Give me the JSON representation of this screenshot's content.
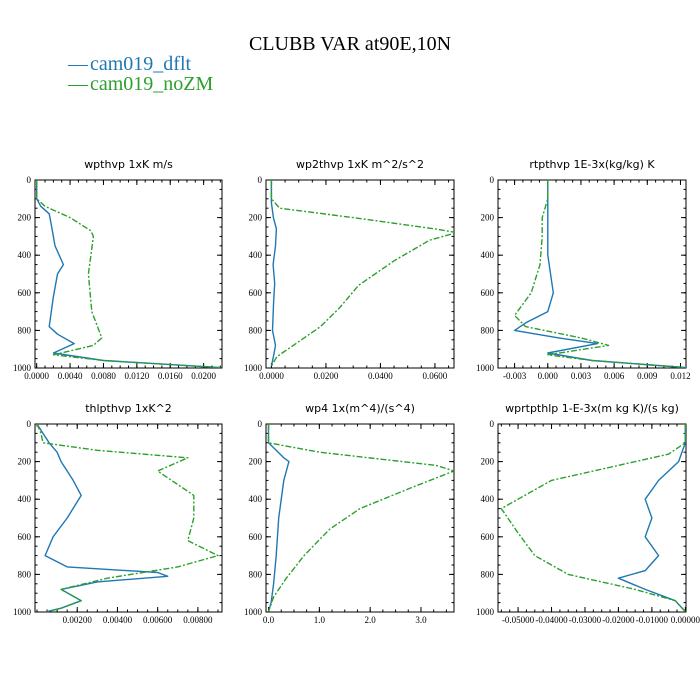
{
  "figure": {
    "title": "CLUBB VAR at90E,10N"
  },
  "colors": {
    "cam019_dflt": "#1f77b4",
    "cam019_noZM": "#2ca02c"
  },
  "legend": {
    "placement": "top-left",
    "items": [
      {
        "symbol": "—",
        "label": "cam019_dflt",
        "color": "#1f77b4"
      },
      {
        "symbol": "—",
        "label": "cam019_noZM",
        "color": "#2ca02c"
      }
    ]
  },
  "chart_data": [
    {
      "type": "line",
      "title": "wpthvp   1xK m/s",
      "xlim": [
        -0.0002,
        0.0222
      ],
      "ylim": [
        1000,
        0
      ],
      "xticks": [
        0.0,
        0.004,
        0.008,
        0.012,
        0.016,
        0.02
      ],
      "xtick_labels": [
        "0.0000",
        "0.0040",
        "0.0080",
        "0.0120",
        "0.0160",
        "0.0200"
      ],
      "yticks": [
        0,
        200,
        400,
        600,
        800,
        1000
      ],
      "ytick_labels": [
        "0",
        "200",
        "400",
        "600",
        "800",
        "1000"
      ],
      "series": [
        {
          "name": "cam019_dflt",
          "dash": "",
          "points": [
            [
              0.0,
              0
            ],
            [
              0.0,
              100
            ],
            [
              0.0005,
              140
            ],
            [
              0.0015,
              180
            ],
            [
              0.0018,
              250
            ],
            [
              0.0022,
              350
            ],
            [
              0.0032,
              450
            ],
            [
              0.0025,
              500
            ],
            [
              0.002,
              620
            ],
            [
              0.0015,
              780
            ],
            [
              0.0025,
              820
            ],
            [
              0.0045,
              870
            ],
            [
              0.002,
              920
            ],
            [
              0.008,
              960
            ],
            [
              0.022,
              998
            ]
          ]
        },
        {
          "name": "cam019_noZM",
          "dash": "6,2,2,2",
          "points": [
            [
              0.0,
              0
            ],
            [
              0.0,
              100
            ],
            [
              0.001,
              140
            ],
            [
              0.004,
              200
            ],
            [
              0.0065,
              270
            ],
            [
              0.0068,
              300
            ],
            [
              0.0062,
              500
            ],
            [
              0.0066,
              700
            ],
            [
              0.0078,
              840
            ],
            [
              0.0068,
              880
            ],
            [
              0.002,
              930
            ],
            [
              0.008,
              960
            ],
            [
              0.022,
              998
            ]
          ]
        }
      ]
    },
    {
      "type": "line",
      "title": "wp2thvp   1xK m^2/s^2",
      "xlim": [
        -0.002,
        0.067
      ],
      "ylim": [
        1000,
        0
      ],
      "xticks": [
        0.0,
        0.02,
        0.04,
        0.06
      ],
      "xtick_labels": [
        "0.0000",
        "0.0200",
        "0.0400",
        "0.0600"
      ],
      "yticks": [
        0,
        200,
        400,
        600,
        800,
        1000
      ],
      "ytick_labels": [
        "0",
        "200",
        "400",
        "600",
        "800",
        "1000"
      ],
      "series": [
        {
          "name": "cam019_dflt",
          "dash": "",
          "points": [
            [
              0.0,
              0
            ],
            [
              0.0,
              120
            ],
            [
              0.0007,
              200
            ],
            [
              0.0018,
              260
            ],
            [
              0.0015,
              350
            ],
            [
              0.0006,
              450
            ],
            [
              0.0012,
              550
            ],
            [
              0.0008,
              650
            ],
            [
              0.0004,
              800
            ],
            [
              0.0015,
              880
            ],
            [
              0.0007,
              940
            ],
            [
              0.0,
              990
            ]
          ]
        },
        {
          "name": "cam019_noZM",
          "dash": "6,2,2,2",
          "points": [
            [
              0.0,
              0
            ],
            [
              0.0,
              100
            ],
            [
              0.003,
              150
            ],
            [
              0.03,
              200
            ],
            [
              0.06,
              260
            ],
            [
              0.068,
              280
            ],
            [
              0.058,
              320
            ],
            [
              0.045,
              430
            ],
            [
              0.032,
              560
            ],
            [
              0.025,
              680
            ],
            [
              0.018,
              780
            ],
            [
              0.01,
              860
            ],
            [
              0.002,
              940
            ],
            [
              0.0,
              990
            ]
          ]
        }
      ]
    },
    {
      "type": "line",
      "title": "rtpthvp   1E-3x(kg/kg) K",
      "xlim": [
        -0.0045,
        0.0125
      ],
      "ylim": [
        1000,
        0
      ],
      "xticks": [
        -0.003,
        0.0,
        0.003,
        0.006,
        0.009,
        0.012
      ],
      "xtick_labels": [
        "-0.003",
        "0.000",
        "0.003",
        "0.006",
        "0.009",
        "0.012"
      ],
      "yticks": [
        0,
        200,
        400,
        600,
        800,
        1000
      ],
      "ytick_labels": [
        "0",
        "200",
        "400",
        "600",
        "800",
        "1000"
      ],
      "series": [
        {
          "name": "cam019_dflt",
          "dash": "",
          "points": [
            [
              0.0,
              0
            ],
            [
              0.0,
              200
            ],
            [
              0.0,
              400
            ],
            [
              0.0005,
              600
            ],
            [
              0.0,
              700
            ],
            [
              -0.002,
              760
            ],
            [
              -0.003,
              800
            ],
            [
              0.001,
              840
            ],
            [
              0.0045,
              870
            ],
            [
              0.0,
              920
            ],
            [
              0.004,
              960
            ],
            [
              0.0125,
              998
            ]
          ]
        },
        {
          "name": "cam019_noZM",
          "dash": "6,2,2,2",
          "points": [
            [
              0.0,
              0
            ],
            [
              0.0,
              100
            ],
            [
              -0.0005,
              200
            ],
            [
              -0.0005,
              300
            ],
            [
              -0.0007,
              450
            ],
            [
              -0.0015,
              600
            ],
            [
              -0.003,
              720
            ],
            [
              -0.002,
              780
            ],
            [
              0.003,
              840
            ],
            [
              0.0055,
              880
            ],
            [
              0.0,
              930
            ],
            [
              0.004,
              960
            ],
            [
              0.0125,
              998
            ]
          ]
        }
      ]
    },
    {
      "type": "line",
      "title": "thlpthvp   1xK^2",
      "xlim": [
        -0.0001,
        0.0092
      ],
      "ylim": [
        1000,
        0
      ],
      "xticks": [
        0.002,
        0.004,
        0.006,
        0.008
      ],
      "xtick_labels": [
        "0.00200",
        "0.00400",
        "0.00600",
        "0.00800"
      ],
      "yticks": [
        0,
        200,
        400,
        600,
        800,
        1000
      ],
      "ytick_labels": [
        "0",
        "200",
        "400",
        "600",
        "800",
        "1000"
      ],
      "series": [
        {
          "name": "cam019_dflt",
          "dash": "",
          "points": [
            [
              0.0,
              0
            ],
            [
              0.0003,
              50
            ],
            [
              0.0006,
              100
            ],
            [
              0.001,
              150
            ],
            [
              0.0012,
              200
            ],
            [
              0.0018,
              300
            ],
            [
              0.0022,
              380
            ],
            [
              0.0015,
              500
            ],
            [
              0.0008,
              600
            ],
            [
              0.0004,
              700
            ],
            [
              0.0015,
              760
            ],
            [
              0.006,
              790
            ],
            [
              0.0065,
              810
            ],
            [
              0.003,
              840
            ],
            [
              0.0012,
              880
            ],
            [
              0.0022,
              940
            ],
            [
              0.0012,
              980
            ],
            [
              0.0005,
              998
            ]
          ]
        },
        {
          "name": "cam019_noZM",
          "dash": "6,2,2,2",
          "points": [
            [
              0.0,
              0
            ],
            [
              0.0002,
              50
            ],
            [
              0.0003,
              100
            ],
            [
              0.003,
              140
            ],
            [
              0.0075,
              180
            ],
            [
              0.006,
              250
            ],
            [
              0.0078,
              380
            ],
            [
              0.0078,
              500
            ],
            [
              0.0075,
              620
            ],
            [
              0.009,
              700
            ],
            [
              0.007,
              760
            ],
            [
              0.0035,
              820
            ],
            [
              0.0012,
              880
            ],
            [
              0.0022,
              940
            ],
            [
              0.0012,
              980
            ],
            [
              0.0005,
              998
            ]
          ]
        }
      ]
    },
    {
      "type": "line",
      "title": "wp4   1x(m^4)/(s^4)",
      "xlim": [
        -0.05,
        3.65
      ],
      "ylim": [
        1000,
        0
      ],
      "xticks": [
        0.0,
        1.0,
        2.0,
        3.0
      ],
      "xtick_labels": [
        "0.0",
        "1.0",
        "2.0",
        "3.0"
      ],
      "yticks": [
        0,
        200,
        400,
        600,
        800,
        1000
      ],
      "ytick_labels": [
        "0",
        "200",
        "400",
        "600",
        "800",
        "1000"
      ],
      "series": [
        {
          "name": "cam019_dflt",
          "dash": "",
          "points": [
            [
              0.0,
              0
            ],
            [
              0.0,
              100
            ],
            [
              0.3,
              180
            ],
            [
              0.4,
              200
            ],
            [
              0.3,
              300
            ],
            [
              0.2,
              500
            ],
            [
              0.15,
              700
            ],
            [
              0.1,
              850
            ],
            [
              0.05,
              950
            ],
            [
              0.0,
              998
            ]
          ]
        },
        {
          "name": "cam019_noZM",
          "dash": "6,2,2,2",
          "points": [
            [
              0.0,
              0
            ],
            [
              0.0,
              100
            ],
            [
              1.0,
              150
            ],
            [
              3.3,
              220
            ],
            [
              3.65,
              250
            ],
            [
              2.8,
              340
            ],
            [
              1.8,
              450
            ],
            [
              1.2,
              560
            ],
            [
              0.7,
              700
            ],
            [
              0.35,
              820
            ],
            [
              0.1,
              920
            ],
            [
              0.0,
              998
            ]
          ]
        }
      ]
    },
    {
      "type": "line",
      "title": "wprtpthlp   1-E-3x(m kg K)/(s kg)",
      "xlim": [
        -0.056,
        0.0002
      ],
      "ylim": [
        1000,
        0
      ],
      "xticks": [
        -0.05,
        -0.04,
        -0.03,
        -0.02,
        -0.01,
        0.0
      ],
      "xtick_labels": [
        "-0.05000",
        "-0.04000",
        "-0.03000",
        "-0.02000",
        "-0.01000",
        "0.00000"
      ],
      "yticks": [
        0,
        200,
        400,
        600,
        800,
        1000
      ],
      "ytick_labels": [
        "0",
        "200",
        "400",
        "600",
        "800",
        "1000"
      ],
      "series": [
        {
          "name": "cam019_dflt",
          "dash": "",
          "points": [
            [
              0.0,
              0
            ],
            [
              0.0,
              100
            ],
            [
              -0.002,
              200
            ],
            [
              -0.008,
              300
            ],
            [
              -0.012,
              400
            ],
            [
              -0.01,
              500
            ],
            [
              -0.012,
              600
            ],
            [
              -0.008,
              700
            ],
            [
              -0.012,
              780
            ],
            [
              -0.02,
              820
            ],
            [
              -0.012,
              880
            ],
            [
              -0.003,
              940
            ],
            [
              0.0,
              998
            ]
          ]
        },
        {
          "name": "cam019_noZM",
          "dash": "6,2,2,2",
          "points": [
            [
              0.0,
              0
            ],
            [
              0.0,
              100
            ],
            [
              -0.005,
              160
            ],
            [
              -0.02,
              220
            ],
            [
              -0.04,
              300
            ],
            [
              -0.055,
              450
            ],
            [
              -0.05,
              580
            ],
            [
              -0.045,
              700
            ],
            [
              -0.035,
              800
            ],
            [
              -0.015,
              880
            ],
            [
              -0.003,
              940
            ],
            [
              0.0,
              998
            ]
          ]
        }
      ]
    }
  ]
}
